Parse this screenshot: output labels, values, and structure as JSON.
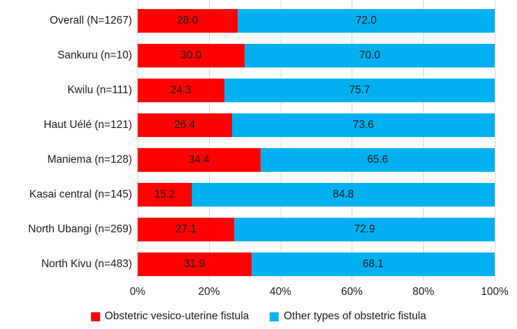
{
  "chart_data": {
    "type": "bar",
    "orientation": "horizontal-stacked",
    "title": "",
    "xlabel": "",
    "ylabel": "",
    "categories": [
      "Overall (N=1267)",
      "Sankuru (n=10)",
      "Kwilu (n=111)",
      "Haut Uélé (n=121)",
      "Maniema (n=128)",
      "Kasai central (n=145)",
      "North Ubangi (n=269)",
      "North Kivu (n=483)"
    ],
    "series": [
      {
        "name": "Obstetric vesico-uterine fistula",
        "color": "#ff0000",
        "values": [
          28.0,
          30.0,
          24.3,
          26.4,
          34.4,
          15.2,
          27.1,
          31.9
        ],
        "labels": [
          "28.0",
          "30.0",
          "24.3",
          "26.4",
          "34.4",
          "15.2",
          "27.1",
          "31.9"
        ]
      },
      {
        "name": "Other types of obstetric fistula",
        "color": "#00b0f0",
        "values": [
          72.0,
          70.0,
          75.7,
          73.6,
          65.6,
          84.8,
          72.9,
          68.1
        ],
        "labels": [
          "72.0",
          "70.0",
          "75.7",
          "73.6",
          "65.6",
          "84.8",
          "72.9",
          "68.1"
        ]
      }
    ],
    "x_axis": {
      "min": 0,
      "max": 100,
      "tick_values": [
        0,
        20,
        40,
        60,
        80,
        100
      ],
      "ticks": [
        "0%",
        "20%",
        "40%",
        "60%",
        "80%",
        "100%"
      ]
    },
    "grid": true,
    "gridline_color": "#d9d9d9",
    "legend_position": "bottom",
    "value_label_color": "#1a1a1a"
  }
}
